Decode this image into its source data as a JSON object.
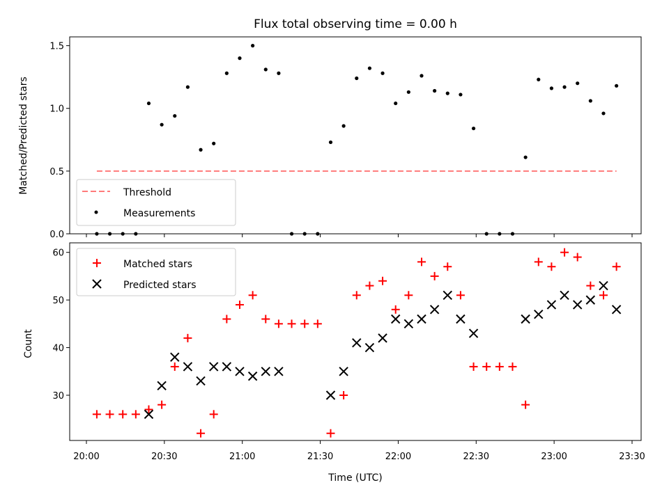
{
  "chart_data": [
    {
      "type": "scatter",
      "title": "Flux total observing time = 0.00 h",
      "xlabel": "",
      "ylabel": "Matched/Predicted stars",
      "ylim": [
        0,
        1.57
      ],
      "xlim": [
        "20:00",
        "23:30"
      ],
      "yticks": [
        "0.0",
        "0.5",
        "1.0",
        "1.5"
      ],
      "legend_position": "lower-left",
      "threshold": {
        "name": "Threshold",
        "value": 0.5,
        "x_start": "20:04",
        "x_end": "23:24",
        "color": "#ff7a7a",
        "style": "dashed"
      },
      "series": [
        {
          "name": "Measurements",
          "color": "#000000",
          "marker": "dot",
          "x": [
            "20:04",
            "20:09",
            "20:14",
            "20:19",
            "20:24",
            "20:29",
            "20:34",
            "20:39",
            "20:44",
            "20:49",
            "20:54",
            "20:59",
            "21:04",
            "21:09",
            "21:14",
            "21:19",
            "21:24",
            "21:29",
            "21:34",
            "21:39",
            "21:44",
            "21:49",
            "21:54",
            "21:59",
            "22:04",
            "22:09",
            "22:14",
            "22:19",
            "22:24",
            "22:29",
            "22:34",
            "22:39",
            "22:44",
            "22:49",
            "22:54",
            "22:59",
            "23:04",
            "23:09",
            "23:14",
            "23:19",
            "23:24"
          ],
          "y": [
            0,
            0,
            0,
            0,
            1.04,
            0.87,
            0.94,
            1.17,
            0.67,
            0.72,
            1.28,
            1.4,
            1.5,
            1.31,
            1.28,
            0,
            0,
            0,
            0.73,
            0.86,
            1.24,
            1.32,
            1.28,
            1.04,
            1.13,
            1.26,
            1.14,
            1.12,
            1.11,
            0.84,
            0,
            0,
            0,
            0.61,
            1.23,
            1.16,
            1.17,
            1.2,
            1.06,
            0.96,
            1.18
          ]
        }
      ]
    },
    {
      "type": "scatter",
      "title": "",
      "xlabel": "Time (UTC)",
      "ylabel": "Count",
      "ylim": [
        20.5,
        62
      ],
      "xlim": [
        "20:00",
        "23:30"
      ],
      "yticks": [
        "30",
        "40",
        "50",
        "60"
      ],
      "xticks": [
        "20:00",
        "20:30",
        "21:00",
        "21:30",
        "22:00",
        "22:30",
        "23:00",
        "23:30"
      ],
      "legend_position": "upper-left",
      "series": [
        {
          "name": "Matched stars",
          "color": "#ff0000",
          "marker": "plus",
          "x": [
            "20:04",
            "20:09",
            "20:14",
            "20:19",
            "20:24",
            "20:29",
            "20:34",
            "20:39",
            "20:44",
            "20:49",
            "20:54",
            "20:59",
            "21:04",
            "21:09",
            "21:14",
            "21:19",
            "21:24",
            "21:29",
            "21:34",
            "21:39",
            "21:44",
            "21:49",
            "21:54",
            "21:59",
            "22:04",
            "22:09",
            "22:14",
            "22:19",
            "22:24",
            "22:29",
            "22:34",
            "22:39",
            "22:44",
            "22:49",
            "22:54",
            "22:59",
            "23:04",
            "23:09",
            "23:14",
            "23:19",
            "23:24"
          ],
          "y": [
            26,
            26,
            26,
            26,
            27,
            28,
            36,
            42,
            22,
            26,
            46,
            49,
            51,
            46,
            45,
            45,
            45,
            45,
            22,
            30,
            51,
            53,
            54,
            48,
            51,
            58,
            55,
            57,
            51,
            36,
            36,
            36,
            36,
            28,
            58,
            57,
            60,
            59,
            53,
            51,
            57
          ]
        },
        {
          "name": "Predicted stars",
          "color": "#000000",
          "marker": "x",
          "x": [
            "20:24",
            "20:29",
            "20:34",
            "20:39",
            "20:44",
            "20:49",
            "20:54",
            "20:59",
            "21:04",
            "21:09",
            "21:14",
            "21:34",
            "21:39",
            "21:44",
            "21:49",
            "21:54",
            "21:59",
            "22:04",
            "22:09",
            "22:14",
            "22:19",
            "22:24",
            "22:29",
            "22:49",
            "22:54",
            "22:59",
            "23:04",
            "23:09",
            "23:14",
            "23:19",
            "23:24"
          ],
          "y": [
            26,
            32,
            38,
            36,
            33,
            36,
            36,
            35,
            34,
            35,
            35,
            30,
            35,
            41,
            40,
            42,
            46,
            45,
            46,
            48,
            51,
            46,
            43,
            46,
            47,
            49,
            51,
            49,
            50,
            53,
            48
          ]
        }
      ]
    }
  ]
}
